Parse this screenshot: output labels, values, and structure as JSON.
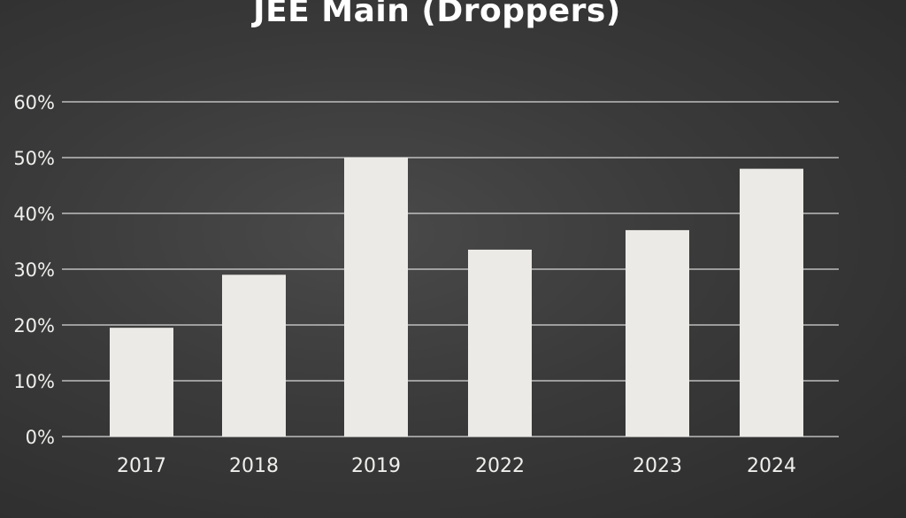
{
  "chart_data": {
    "type": "bar",
    "title": "JEE Main (Droppers)",
    "xlabel": "",
    "ylabel": "",
    "categories": [
      "2017",
      "2018",
      "2019",
      "2022",
      "2023",
      "2024"
    ],
    "values": [
      19.5,
      29,
      50,
      33.5,
      37,
      48
    ],
    "ylim": [
      0,
      60
    ],
    "y_ticks": [
      "0%",
      "10%",
      "20%",
      "30%",
      "40%",
      "50%",
      "60%"
    ],
    "grid": true,
    "legend": "none",
    "colors": {
      "background": "#3a3a3a",
      "bar": "#ebeae6",
      "grid": "#d8d8d8",
      "text": "#efefed"
    }
  }
}
